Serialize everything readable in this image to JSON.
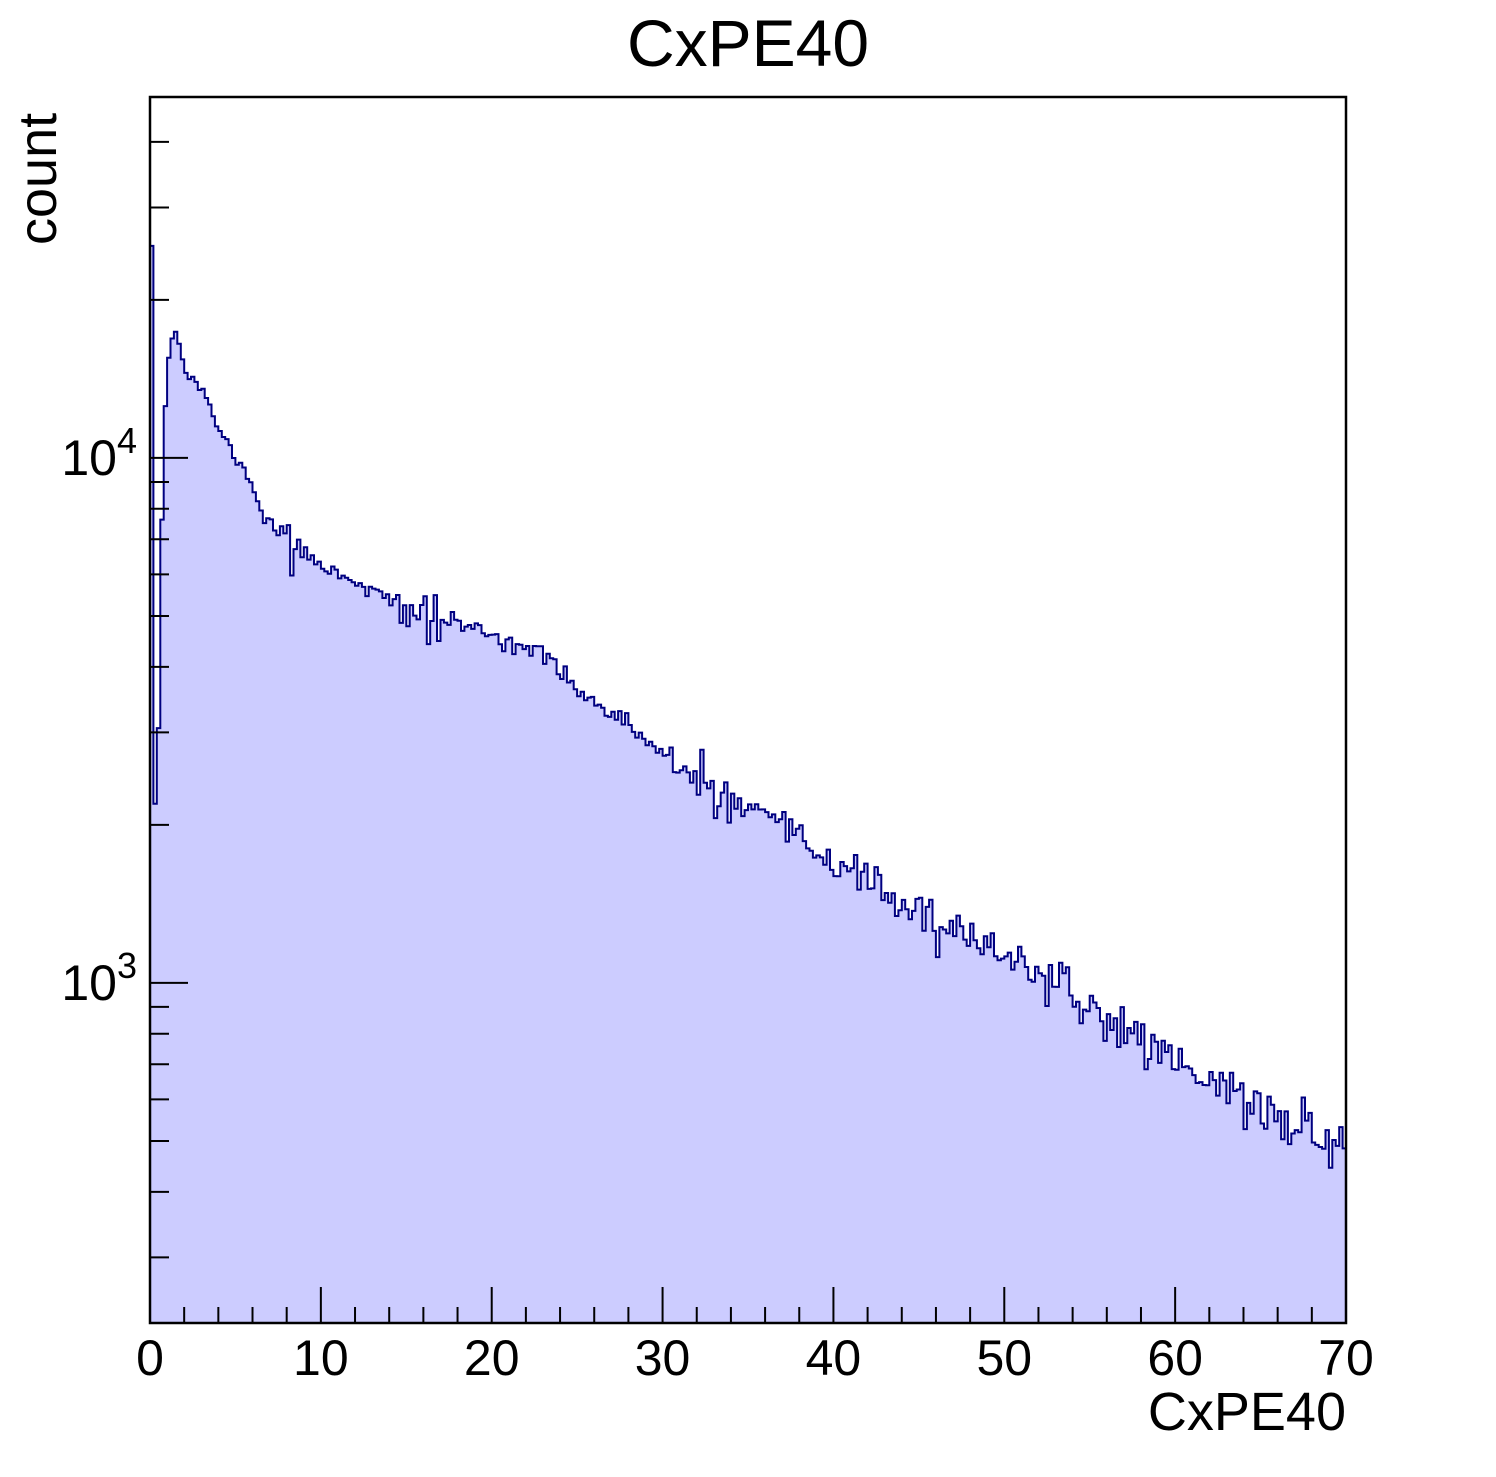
{
  "labels": {
    "title": "CxPE40",
    "xlabel": "CxPE40",
    "ylabel": "count"
  },
  "style": {
    "background": "#ffffff",
    "fill_color": "#ccccff",
    "line_color": "#000080",
    "frame_color": "#000000",
    "text_color": "#000000"
  },
  "chart_data": {
    "type": "bar",
    "subtype": "step-histogram",
    "title": "CxPE40",
    "xlabel": "CxPE40",
    "ylabel": "count",
    "xlim": [
      0,
      70
    ],
    "ylim": [
      225,
      48700
    ],
    "yscale": "log",
    "grid": false,
    "legend": false,
    "x_major_ticks": [
      0,
      10,
      20,
      30,
      40,
      50,
      60,
      70
    ],
    "x_minor_step": 2,
    "y_major_ticks": [
      1000,
      10000
    ],
    "y_major_labels": [
      {
        "base": "10",
        "exp": "3"
      },
      {
        "base": "10",
        "exp": "4"
      }
    ],
    "bins": {
      "n": 350,
      "xmin": 0,
      "xmax": 70,
      "width": 0.2
    },
    "trend_points": [
      [
        0.1,
        25600
      ],
      [
        0.3,
        2250
      ],
      [
        0.5,
        3100
      ],
      [
        0.7,
        7900
      ],
      [
        0.9,
        12700
      ],
      [
        1.1,
        15400
      ],
      [
        1.3,
        17000
      ],
      [
        1.5,
        17300
      ],
      [
        1.8,
        16200
      ],
      [
        2.1,
        14400
      ],
      [
        2.6,
        14100
      ],
      [
        3.0,
        13500
      ],
      [
        3.6,
        12300
      ],
      [
        4.1,
        11200
      ],
      [
        4.7,
        10400
      ],
      [
        5.3,
        9700
      ],
      [
        6.0,
        8900
      ],
      [
        6.6,
        7750
      ],
      [
        7.4,
        7300
      ],
      [
        8.1,
        7200
      ],
      [
        8.8,
        6650
      ],
      [
        10,
        6260
      ],
      [
        11.7,
        5900
      ],
      [
        13,
        5600
      ],
      [
        14.6,
        5250
      ],
      [
        16,
        5000
      ],
      [
        17,
        4920
      ],
      [
        18.3,
        4800
      ],
      [
        20,
        4610
      ],
      [
        22.4,
        4310
      ],
      [
        24.6,
        3800
      ],
      [
        26,
        3400
      ],
      [
        28,
        3100
      ],
      [
        30,
        2680
      ],
      [
        32,
        2430
      ],
      [
        34,
        2230
      ],
      [
        36.3,
        2020
      ],
      [
        38,
        1890
      ],
      [
        40,
        1690
      ],
      [
        42,
        1590
      ],
      [
        44,
        1400
      ],
      [
        45,
        1350
      ],
      [
        47,
        1230
      ],
      [
        48.6,
        1210
      ],
      [
        50,
        1150
      ],
      [
        52,
        1040
      ],
      [
        55,
        890
      ],
      [
        57,
        830
      ],
      [
        60,
        715
      ],
      [
        62.6,
        640
      ],
      [
        65.5,
        565
      ],
      [
        68.4,
        510
      ],
      [
        70,
        483
      ]
    ],
    "outlier_bins": [
      [
        8.06,
        7450
      ],
      [
        8.26,
        5970
      ],
      [
        14.7,
        4850
      ],
      [
        15.1,
        4780
      ],
      [
        16.1,
        5450
      ],
      [
        16.3,
        4420
      ],
      [
        16.7,
        5480
      ],
      [
        16.9,
        4480
      ],
      [
        32.3,
        2780
      ],
      [
        33.1,
        2060
      ],
      [
        33.9,
        2020
      ],
      [
        45.7,
        1440
      ],
      [
        46.1,
        1120
      ],
      [
        56.6,
        755
      ]
    ],
    "noise": {
      "seed": 11,
      "coeff": 1.4,
      "clamp_sigma": 2.6
    }
  }
}
